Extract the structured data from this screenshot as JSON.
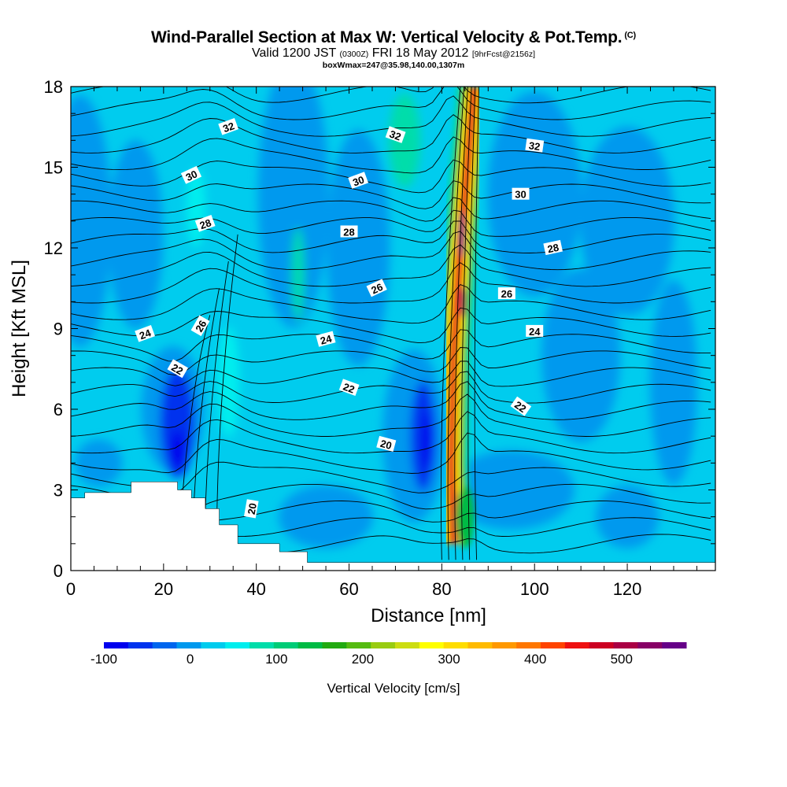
{
  "header": {
    "title": "Wind-Parallel Section at Max W: Vertical Velocity & Pot.Temp.",
    "copyright": "(C)",
    "valid_prefix": "Valid 1200 JST",
    "valid_z": "(0300Z)",
    "valid_date": "FRI 18 May 2012",
    "forecast": "[9hrFcst@2156z]",
    "box_info": "boxWmax=247@35.98,140.00,1307m"
  },
  "chart_data": {
    "type": "heatmap",
    "xlabel": "Distance [nm]",
    "ylabel": "Height [Kft MSL]",
    "xlim": [
      0,
      139
    ],
    "ylim": [
      0,
      18
    ],
    "x_ticks": [
      0,
      20,
      40,
      60,
      80,
      100,
      120
    ],
    "y_ticks": [
      0,
      3,
      6,
      9,
      12,
      15,
      18
    ],
    "grid": false,
    "colorbar": {
      "label": "Vertical Velocity [cm/s]",
      "min": -100,
      "max": 575,
      "step": 25,
      "tick_values": [
        -100,
        0,
        100,
        200,
        300,
        400,
        500
      ],
      "colors": [
        "#0000ee",
        "#0033ee",
        "#0066ee",
        "#0099ee",
        "#00ccee",
        "#00eeee",
        "#00ddaa",
        "#00cc77",
        "#00bb44",
        "#22aa11",
        "#55bb11",
        "#99cc11",
        "#ccdd11",
        "#ffff00",
        "#ffdd00",
        "#ffbb00",
        "#ff9900",
        "#ff7700",
        "#ff4400",
        "#ee1111",
        "#cc0022",
        "#aa0044",
        "#880066",
        "#660088"
      ]
    },
    "contour_label": "Pot.Temp. (degC)",
    "contour_levels": [
      20,
      22,
      24,
      26,
      28,
      30,
      32
    ],
    "contour_labels_shown": [
      {
        "value": 32,
        "x": 34,
        "y": 16.5,
        "angle": -20
      },
      {
        "value": 32,
        "x": 70,
        "y": 16.2,
        "angle": 20
      },
      {
        "value": 32,
        "x": 100,
        "y": 15.8,
        "angle": 8
      },
      {
        "value": 30,
        "x": 26,
        "y": 14.7,
        "angle": -25
      },
      {
        "value": 30,
        "x": 62,
        "y": 14.5,
        "angle": -20
      },
      {
        "value": 30,
        "x": 97,
        "y": 14.0,
        "angle": 0
      },
      {
        "value": 28,
        "x": 29,
        "y": 12.9,
        "angle": -20
      },
      {
        "value": 28,
        "x": 60,
        "y": 12.6,
        "angle": 0
      },
      {
        "value": 28,
        "x": 104,
        "y": 12.0,
        "angle": -12
      },
      {
        "value": 26,
        "x": 28,
        "y": 9.1,
        "angle": -60
      },
      {
        "value": 26,
        "x": 66,
        "y": 10.5,
        "angle": -25
      },
      {
        "value": 26,
        "x": 94,
        "y": 10.3,
        "angle": 0
      },
      {
        "value": 24,
        "x": 16,
        "y": 8.8,
        "angle": -20
      },
      {
        "value": 24,
        "x": 55,
        "y": 8.6,
        "angle": -15
      },
      {
        "value": 24,
        "x": 100,
        "y": 8.9,
        "angle": 0
      },
      {
        "value": 22,
        "x": 23,
        "y": 7.5,
        "angle": 30
      },
      {
        "value": 22,
        "x": 60,
        "y": 6.8,
        "angle": 20
      },
      {
        "value": 22,
        "x": 97,
        "y": 6.1,
        "angle": 35
      },
      {
        "value": 20,
        "x": 68,
        "y": 4.7,
        "angle": 15
      },
      {
        "value": 20,
        "x": 39,
        "y": 2.3,
        "angle": -80
      }
    ],
    "w_max_ridge": [
      [
        87,
        18
      ],
      [
        84,
        12
      ],
      [
        82.5,
        8
      ],
      [
        82,
        4
      ],
      [
        82.5,
        1
      ]
    ],
    "terrain_steps": [
      [
        0,
        2.7
      ],
      [
        3,
        2.9
      ],
      [
        13,
        3.3
      ],
      [
        23,
        3.0
      ],
      [
        26,
        2.7
      ],
      [
        29,
        2.3
      ],
      [
        32,
        1.7
      ],
      [
        36,
        1.0
      ],
      [
        45,
        0.7
      ],
      [
        51,
        0.3
      ],
      [
        139,
        0.3
      ]
    ]
  }
}
